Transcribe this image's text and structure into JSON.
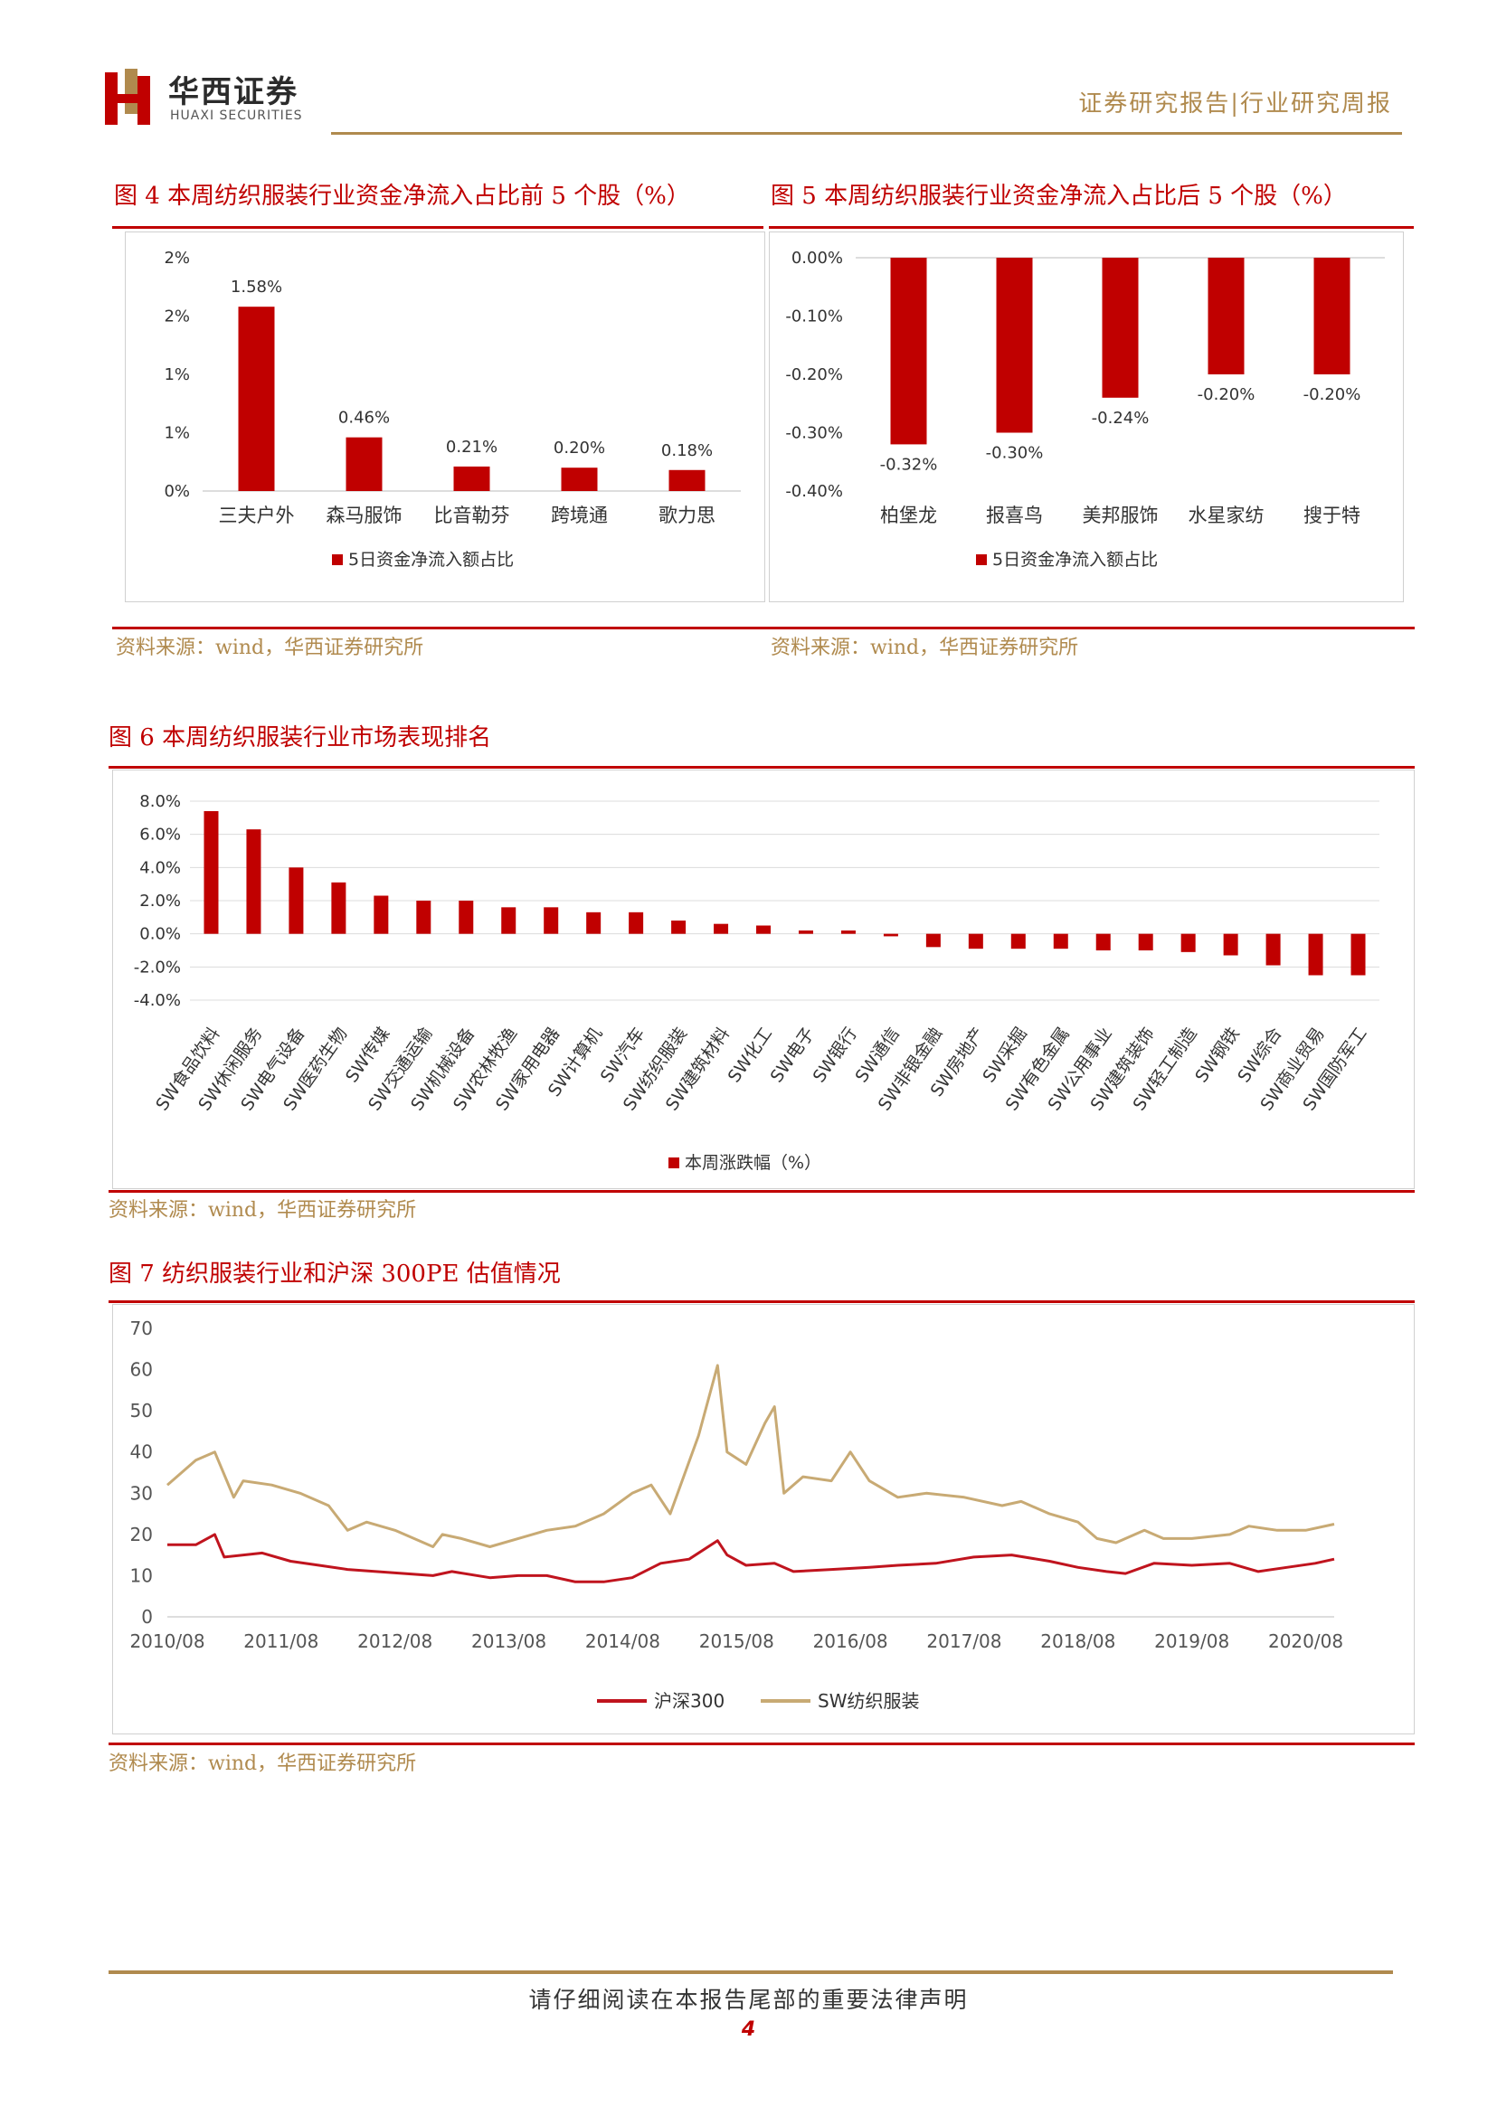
{
  "header": {
    "company_cn": "华西证券",
    "company_en": "HUAXI SECURITIES",
    "report_type": "证券研究报告|行业研究周报"
  },
  "colors": {
    "red": "#c00000",
    "gold": "#b08a4e",
    "line_red": "#c0141e",
    "line_gold": "#c8aa74"
  },
  "figures": {
    "fig4": {
      "title": "图 4 本周纺织服装行业资金净流入占比前 5 个股（%）",
      "source": "资料来源：wind，华西证券研究所"
    },
    "fig5": {
      "title": "图 5 本周纺织服装行业资金净流入占比后 5 个股（%）",
      "source": "资料来源：wind，华西证券研究所"
    },
    "fig6": {
      "title": "图 6 本周纺织服装行业市场表现排名",
      "source": "资料来源：wind，华西证券研究所"
    },
    "fig7": {
      "title": "图 7 纺织服装行业和沪深 300PE 估值情况",
      "source": "资料来源：wind，华西证券研究所"
    }
  },
  "footer": {
    "disclaimer": "请仔细阅读在本报告尾部的重要法律声明",
    "page": "4"
  },
  "chart_data": [
    {
      "id": "fig4",
      "type": "bar",
      "categories": [
        "三夫户外",
        "森马服饰",
        "比音勒芬",
        "跨境通",
        "歌力思"
      ],
      "series": [
        {
          "name": "5日资金净流入额占比",
          "values": [
            1.58,
            0.46,
            0.21,
            0.2,
            0.18
          ]
        }
      ],
      "data_labels": [
        "1.58%",
        "0.46%",
        "0.21%",
        "0.20%",
        "0.18%"
      ],
      "y_ticks": [
        "2%",
        "2%",
        "1%",
        "1%",
        "0%"
      ],
      "y_tick_values": [
        2.0,
        1.5,
        1.0,
        0.5,
        0.0
      ],
      "ylim": [
        0,
        2.0
      ],
      "legend_position": "bottom"
    },
    {
      "id": "fig5",
      "type": "bar",
      "categories": [
        "柏堡龙",
        "报喜鸟",
        "美邦服饰",
        "水星家纺",
        "搜于特"
      ],
      "series": [
        {
          "name": "5日资金净流入额占比",
          "values": [
            -0.32,
            -0.3,
            -0.24,
            -0.2,
            -0.2
          ]
        }
      ],
      "data_labels": [
        "-0.32%",
        "-0.30%",
        "-0.24%",
        "-0.20%",
        "-0.20%"
      ],
      "y_ticks": [
        "0.00%",
        "-0.10%",
        "-0.20%",
        "-0.30%",
        "-0.40%"
      ],
      "y_tick_values": [
        0,
        -0.1,
        -0.2,
        -0.3,
        -0.4
      ],
      "ylim": [
        -0.4,
        0
      ],
      "legend_position": "bottom"
    },
    {
      "id": "fig6",
      "type": "bar",
      "categories": [
        "SW食品饮料",
        "SW休闲服务",
        "SW电气设备",
        "SW医药生物",
        "SW传媒",
        "SW交通运输",
        "SW机械设备",
        "SW农林牧渔",
        "SW家用电器",
        "SW计算机",
        "SW汽车",
        "SW纺织服装",
        "SW建筑材料",
        "SW化工",
        "SW电子",
        "SW银行",
        "SW通信",
        "SW非银金融",
        "SW房地产",
        "SW采掘",
        "SW有色金属",
        "SW公用事业",
        "SW建筑装饰",
        "SW轻工制造",
        "SW钢铁",
        "SW综合",
        "SW商业贸易",
        "SW国防军工"
      ],
      "series": [
        {
          "name": "本周涨跌幅（%）",
          "values": [
            7.4,
            6.3,
            4.0,
            3.1,
            2.3,
            2.0,
            2.0,
            1.6,
            1.6,
            1.3,
            1.3,
            0.8,
            0.6,
            0.5,
            0.2,
            0.2,
            -0.15,
            -0.8,
            -0.9,
            -0.9,
            -0.9,
            -1.0,
            -1.0,
            -1.1,
            -1.3,
            -1.9,
            -2.5,
            -2.5
          ]
        }
      ],
      "y_ticks": [
        "8.0%",
        "6.0%",
        "4.0%",
        "2.0%",
        "0.0%",
        "-2.0%",
        "-4.0%"
      ],
      "y_tick_values": [
        8,
        6,
        4,
        2,
        0,
        -2,
        -4
      ],
      "ylim": [
        -4,
        8
      ],
      "legend_position": "bottom"
    },
    {
      "id": "fig7",
      "type": "line",
      "x_ticks": [
        "2010/08",
        "2011/08",
        "2012/08",
        "2013/08",
        "2014/08",
        "2015/08",
        "2016/08",
        "2017/08",
        "2018/08",
        "2019/08",
        "2020/08"
      ],
      "y_ticks": [
        "70",
        "60",
        "50",
        "40",
        "30",
        "20",
        "10",
        "0"
      ],
      "y_tick_values": [
        70,
        60,
        50,
        40,
        30,
        20,
        10,
        0
      ],
      "ylim": [
        0,
        70
      ],
      "x_range": [
        "2010/08",
        "2020/11"
      ],
      "legend_position": "bottom",
      "series": [
        {
          "name": "沪深300",
          "x": [
            "2010/08",
            "2010/11",
            "2011/01",
            "2011/02",
            "2011/06",
            "2011/09",
            "2011/12",
            "2012/03",
            "2012/06",
            "2012/09",
            "2012/12",
            "2013/02",
            "2013/06",
            "2013/09",
            "2013/12",
            "2014/03",
            "2014/06",
            "2014/09",
            "2014/12",
            "2015/03",
            "2015/06",
            "2015/07",
            "2015/09",
            "2015/12",
            "2016/02",
            "2016/06",
            "2016/10",
            "2017/01",
            "2017/05",
            "2017/09",
            "2018/01",
            "2018/05",
            "2018/08",
            "2018/11",
            "2019/01",
            "2019/04",
            "2019/08",
            "2019/12",
            "2020/03",
            "2020/06",
            "2020/09",
            "2020/11"
          ],
          "values": [
            17.5,
            17.5,
            20.0,
            14.5,
            15.5,
            13.5,
            12.5,
            11.5,
            11.0,
            10.5,
            10.0,
            11.0,
            9.5,
            10.0,
            10.0,
            8.5,
            8.5,
            9.5,
            13.0,
            14.0,
            18.5,
            15.0,
            12.5,
            13.0,
            11.0,
            11.5,
            12.0,
            12.5,
            13.0,
            14.5,
            15.0,
            13.5,
            12.0,
            11.0,
            10.5,
            13.0,
            12.5,
            13.0,
            11.0,
            12.0,
            13.0,
            14.0
          ]
        },
        {
          "name": "SW纺织服装",
          "x": [
            "2010/08",
            "2010/11",
            "2011/01",
            "2011/03",
            "2011/04",
            "2011/07",
            "2011/10",
            "2012/01",
            "2012/03",
            "2012/05",
            "2012/08",
            "2012/12",
            "2013/01",
            "2013/03",
            "2013/06",
            "2013/09",
            "2013/12",
            "2014/03",
            "2014/06",
            "2014/09",
            "2014/11",
            "2015/01",
            "2015/04",
            "2015/06",
            "2015/07",
            "2015/09",
            "2015/11",
            "2015/12",
            "2016/01",
            "2016/03",
            "2016/06",
            "2016/08",
            "2016/10",
            "2017/01",
            "2017/04",
            "2017/08",
            "2017/12",
            "2018/02",
            "2018/05",
            "2018/08",
            "2018/10",
            "2018/12",
            "2019/03",
            "2019/05",
            "2019/08",
            "2019/12",
            "2020/02",
            "2020/05",
            "2020/08",
            "2020/11"
          ],
          "values": [
            32.0,
            38.0,
            40.0,
            29.0,
            33.0,
            32.0,
            30.0,
            27.0,
            21.0,
            23.0,
            21.0,
            17.0,
            20.0,
            19.0,
            17.0,
            19.0,
            21.0,
            22.0,
            25.0,
            30.0,
            32.0,
            25.0,
            44.0,
            61.0,
            40.0,
            37.0,
            47.0,
            51.0,
            30.0,
            34.0,
            33.0,
            40.0,
            33.0,
            29.0,
            30.0,
            29.0,
            27.0,
            28.0,
            25.0,
            23.0,
            19.0,
            18.0,
            21.0,
            19.0,
            19.0,
            20.0,
            22.0,
            21.0,
            21.0,
            22.5
          ]
        }
      ]
    }
  ]
}
